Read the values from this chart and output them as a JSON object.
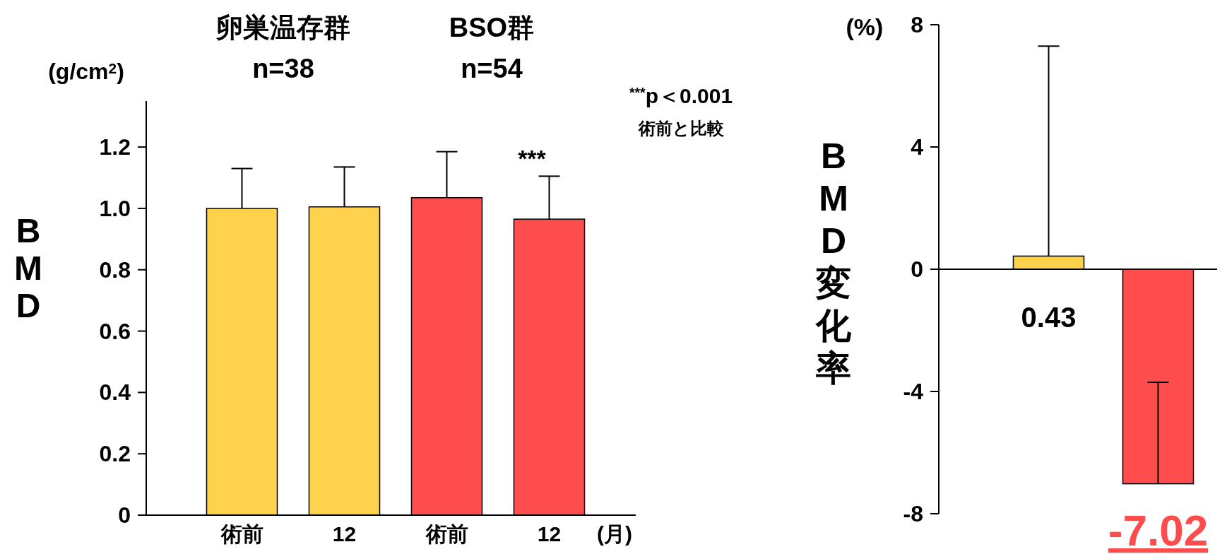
{
  "chart_data": [
    {
      "type": "bar",
      "categories": [
        "術前",
        "12",
        "術前",
        "12"
      ],
      "values": [
        1.0,
        1.005,
        1.035,
        0.965
      ],
      "errors": [
        [
          1.0,
          1.13
        ],
        [
          1.005,
          1.135
        ],
        [
          1.035,
          1.185
        ],
        [
          0.965,
          1.105
        ]
      ],
      "colors": [
        "#ffd24d",
        "#ffd24d",
        "#ff4d4d",
        "#ff4d4d"
      ],
      "ylabel": "BMD",
      "xlabel": "(月)",
      "ylim": [
        0,
        1.35
      ],
      "yticks": [
        0,
        0.2,
        0.4,
        0.6,
        0.8,
        {
          "value": 1,
          "label": "1.0"
        },
        1.2
      ],
      "annotations": [
        "卵巣温存群",
        "n=38",
        "BSO群",
        "n=54",
        "(g/cm$^{2}$)",
        "***",
        "$^{***}$p＜0.001",
        "術前と比較"
      ]
    },
    {
      "type": "bar",
      "categories": [
        null,
        null
      ],
      "values": [
        0.43,
        -7.02
      ],
      "errors": [
        [
          0.43,
          7.3
        ],
        [
          -7.02,
          -3.7
        ]
      ],
      "colors": [
        "#ffd24d",
        "#ff4d4d"
      ],
      "ylabel": "BMD変化率",
      "ylim": [
        -8,
        8
      ],
      "yticks": [
        -8,
        -4,
        0,
        4,
        8
      ],
      "data_labels": true,
      "tick_labels": "y",
      "annotations": [
        "(%)"
      ]
    }
  ]
}
